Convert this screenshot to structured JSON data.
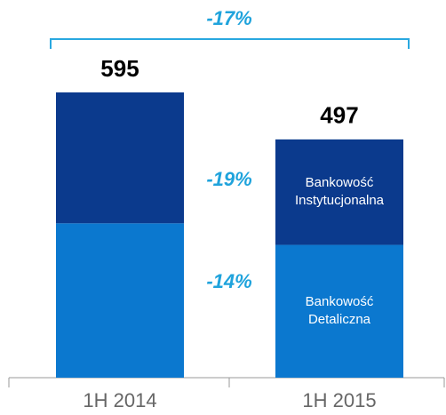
{
  "chart_data": {
    "type": "stacked_bar",
    "categories": [
      "1H 2014",
      "1H 2015"
    ],
    "series": [
      {
        "name": "Bankowość Detaliczna",
        "color": "#0b78cf",
        "values": [
          322,
          277
        ]
      },
      {
        "name": "Bankowość Instytucjonalna",
        "color": "#0b3a8d",
        "values": [
          273,
          220
        ]
      }
    ],
    "totals": [
      595,
      497
    ],
    "annotations": [
      "-17%",
      "-19%",
      "-14%"
    ],
    "ylim": [
      0,
      600
    ]
  }
}
